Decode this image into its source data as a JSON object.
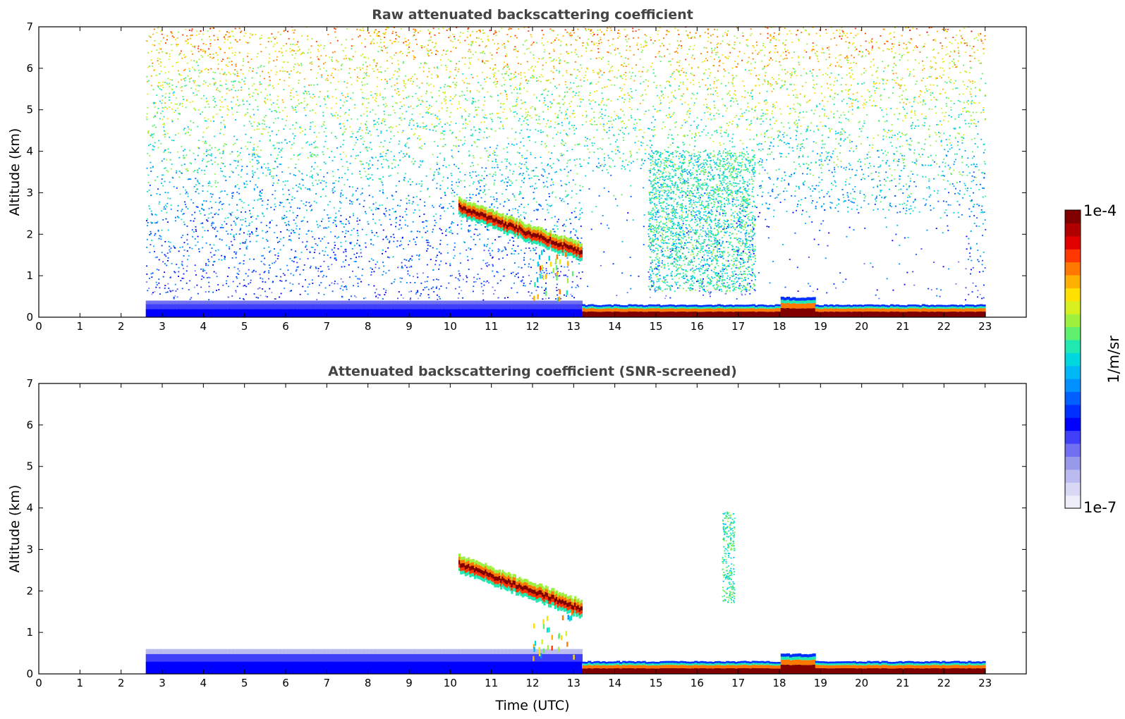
{
  "chart_data": [
    {
      "type": "heatmap",
      "title": "Raw attenuated backscattering coefficient",
      "xlabel": "",
      "ylabel": "Altitude (km)",
      "xlim": [
        0,
        24
      ],
      "ylim": [
        0,
        7
      ],
      "xticks": [
        0,
        1,
        2,
        3,
        4,
        5,
        6,
        7,
        8,
        9,
        10,
        11,
        12,
        13,
        14,
        15,
        16,
        17,
        18,
        19,
        20,
        21,
        22,
        23
      ],
      "yticks": [
        0,
        1,
        2,
        3,
        4,
        5,
        6,
        7
      ],
      "data_extent_time": [
        2.6,
        23.0
      ],
      "features": [
        {
          "kind": "noise_background",
          "time": [
            2.6,
            23.0
          ],
          "altitude": [
            0.4,
            7.0
          ],
          "level": "low near surface increasing to yellow-orange aloft"
        },
        {
          "kind": "boundary_layer",
          "time": [
            2.6,
            13.2
          ],
          "altitude": [
            0.0,
            0.4
          ],
          "level": "blue"
        },
        {
          "kind": "cloud_layer",
          "time": [
            10.2,
            13.2
          ],
          "altitude_start": 2.6,
          "altitude_end": 1.5,
          "level": "1e-4"
        },
        {
          "kind": "surface_layer",
          "time": [
            13.2,
            23.0
          ],
          "altitude": [
            0.0,
            0.3
          ],
          "level": "1e-4"
        },
        {
          "kind": "aerosol_column",
          "time": [
            14.8,
            17.4
          ],
          "altitude": [
            0.6,
            4.0
          ],
          "level": "green-cyan"
        }
      ]
    },
    {
      "type": "heatmap",
      "title": "Attenuated backscattering coefficient (SNR-screened)",
      "xlabel": "Time (UTC)",
      "ylabel": "Altitude (km)",
      "xlim": [
        0,
        24
      ],
      "ylim": [
        0,
        7
      ],
      "xticks": [
        0,
        1,
        2,
        3,
        4,
        5,
        6,
        7,
        8,
        9,
        10,
        11,
        12,
        13,
        14,
        15,
        16,
        17,
        18,
        19,
        20,
        21,
        22,
        23
      ],
      "yticks": [
        0,
        1,
        2,
        3,
        4,
        5,
        6,
        7
      ],
      "data_extent_time": [
        2.6,
        23.0
      ],
      "features": [
        {
          "kind": "boundary_layer",
          "time": [
            2.6,
            13.2
          ],
          "altitude": [
            0.0,
            0.6
          ],
          "level": "blue"
        },
        {
          "kind": "cloud_layer",
          "time": [
            10.2,
            13.2
          ],
          "altitude_start": 2.6,
          "altitude_end": 1.5,
          "level": "1e-4"
        },
        {
          "kind": "surface_layer",
          "time": [
            13.2,
            23.0
          ],
          "altitude": [
            0.0,
            0.3
          ],
          "level": "1e-4"
        },
        {
          "kind": "aerosol_column",
          "time": [
            16.6,
            16.9
          ],
          "altitude": [
            1.7,
            3.9
          ],
          "level": "green-cyan"
        }
      ]
    }
  ],
  "colorbar": {
    "label": "1/m/sr",
    "max_label": "1e-4",
    "min_label": "1e-7",
    "colors": [
      "#eeeefa",
      "#d8d8f5",
      "#bbbbf0",
      "#9999ea",
      "#7070f0",
      "#4040f8",
      "#0000ff",
      "#0030ff",
      "#0060ff",
      "#0090ff",
      "#00b8f8",
      "#00d8e0",
      "#20e8b0",
      "#60f070",
      "#a0f040",
      "#d8f020",
      "#ffe000",
      "#ffb000",
      "#ff7800",
      "#ff3800",
      "#e00000",
      "#b00000",
      "#800000"
    ]
  }
}
